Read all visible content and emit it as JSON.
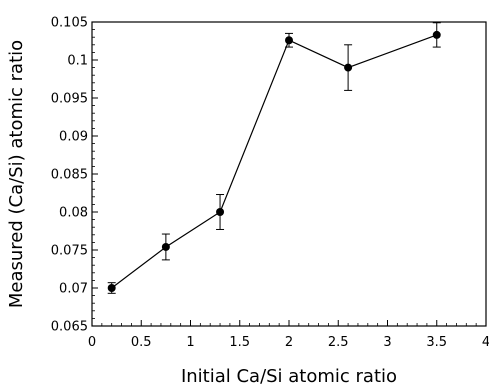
{
  "chart_data": {
    "type": "line",
    "title": "",
    "xlabel": "Initial Ca/Si atomic ratio",
    "ylabel": "Measured (Ca/Si) atomic ratio",
    "xlim": [
      0,
      4
    ],
    "ylim": [
      0.065,
      0.105
    ],
    "x_ticks": [
      "0",
      "0.5",
      "1",
      "1.5",
      "2",
      "2.5",
      "3",
      "3.5",
      "4"
    ],
    "y_ticks": [
      "0.065",
      "0.07",
      "0.075",
      "0.08",
      "0.085",
      "0.09",
      "0.095",
      "0.1",
      "0.105"
    ],
    "grid": false,
    "series": [
      {
        "x": [
          0.2,
          0.75,
          1.3,
          2.0,
          2.6,
          3.5
        ],
        "y": [
          0.07,
          0.0754,
          0.08,
          0.1026,
          0.099,
          0.1033
        ],
        "error": [
          0.0007,
          0.0017,
          0.0023,
          0.0009,
          0.003,
          0.0016
        ]
      }
    ],
    "colors": {
      "line": "#000000",
      "marker": "#000000"
    }
  }
}
